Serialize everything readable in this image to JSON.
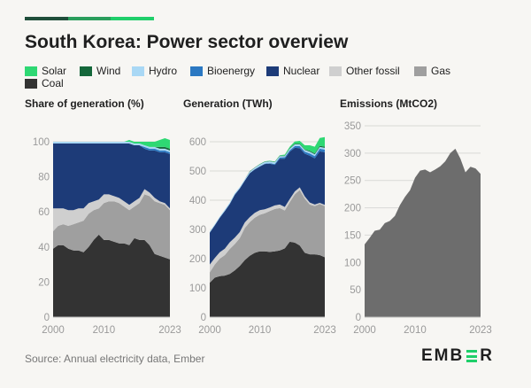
{
  "title": "South Korea: Power sector overview",
  "colors": {
    "accent_bar": [
      "#1f4e3a",
      "#2a9d5c",
      "#1fcf6a"
    ],
    "Solar": "#2ed873",
    "Wind": "#14673a",
    "Hydro": "#a9d8f5",
    "Bioenergy": "#2b78c2",
    "Nuclear": "#1d3b78",
    "Other fossil": "#cfcfcf",
    "Gas": "#9f9f9f",
    "Coal": "#333333",
    "Emissions": "#6d6d6d",
    "grid": "#d9d9d6",
    "axis_text": "#9a9a9a"
  },
  "legend": [
    {
      "label": "Solar",
      "icon": "color-swatch"
    },
    {
      "label": "Wind",
      "icon": "color-swatch"
    },
    {
      "label": "Hydro",
      "icon": "color-swatch"
    },
    {
      "label": "Bioenergy",
      "icon": "color-swatch"
    },
    {
      "label": "Nuclear",
      "icon": "color-swatch"
    },
    {
      "label": "Other fossil",
      "icon": "color-swatch"
    },
    {
      "label": "Gas",
      "icon": "color-swatch"
    },
    {
      "label": "Coal",
      "icon": "color-swatch"
    }
  ],
  "source": "Source: Annual electricity data, Ember",
  "logo": {
    "left": "EMB",
    "right": "R",
    "icon": "ember-e-mark"
  },
  "chart_data": [
    {
      "type": "area",
      "stacked": true,
      "title": "Share of generation (%)",
      "x": [
        2000,
        2001,
        2002,
        2003,
        2004,
        2005,
        2006,
        2007,
        2008,
        2009,
        2010,
        2011,
        2012,
        2013,
        2014,
        2015,
        2016,
        2017,
        2018,
        2019,
        2020,
        2021,
        2022,
        2023
      ],
      "xticks": [
        "2000",
        "2010",
        "2023"
      ],
      "ylim": [
        0,
        100
      ],
      "yticks": [
        0,
        20,
        40,
        60,
        80,
        100
      ],
      "series": [
        {
          "name": "Coal",
          "values": [
            39,
            41,
            41,
            39,
            38,
            38,
            37,
            40,
            44,
            47,
            44,
            44,
            43,
            42,
            42,
            41,
            45,
            44,
            44,
            41,
            36,
            35,
            34,
            33
          ]
        },
        {
          "name": "Gas",
          "values": [
            10,
            11,
            12,
            13,
            15,
            16,
            18,
            19,
            17,
            15,
            21,
            22,
            23,
            23,
            21,
            20,
            18,
            21,
            26,
            28,
            30,
            30,
            30,
            28
          ]
        },
        {
          "name": "Other fossil",
          "values": [
            13,
            10,
            9,
            9,
            8,
            8,
            7,
            6,
            5,
            5,
            5,
            4,
            3,
            3,
            3,
            3,
            3,
            3,
            3,
            2,
            2,
            1,
            1,
            1
          ]
        },
        {
          "name": "Nuclear",
          "values": [
            37,
            37,
            37,
            38,
            38,
            37,
            37,
            34,
            33,
            32,
            29,
            29,
            30,
            31,
            33,
            35,
            32,
            30,
            23,
            24,
            27,
            28,
            29,
            31
          ]
        },
        {
          "name": "Bioenergy",
          "values": [
            0,
            0,
            0,
            0,
            0,
            0,
            0,
            0,
            0,
            0,
            0,
            0,
            0,
            0,
            0,
            0,
            0,
            0,
            1,
            1,
            1,
            1,
            1,
            1
          ]
        },
        {
          "name": "Hydro",
          "values": [
            1,
            1,
            1,
            1,
            1,
            1,
            1,
            1,
            1,
            1,
            1,
            1,
            1,
            1,
            1,
            1,
            1,
            1,
            1,
            1,
            1,
            1,
            1,
            1
          ]
        },
        {
          "name": "Wind",
          "values": [
            0,
            0,
            0,
            0,
            0,
            0,
            0,
            0,
            0,
            0,
            0,
            0,
            0,
            0,
            0,
            0,
            0,
            0,
            0,
            0,
            0,
            1,
            1,
            1
          ]
        },
        {
          "name": "Solar",
          "values": [
            0,
            0,
            0,
            0,
            0,
            0,
            0,
            0,
            0,
            0,
            0,
            0,
            0,
            0,
            0,
            1,
            1,
            1,
            2,
            3,
            3,
            4,
            5,
            5
          ]
        }
      ]
    },
    {
      "type": "area",
      "stacked": true,
      "title": "Generation (TWh)",
      "x": [
        2000,
        2001,
        2002,
        2003,
        2004,
        2005,
        2006,
        2007,
        2008,
        2009,
        2010,
        2011,
        2012,
        2013,
        2014,
        2015,
        2016,
        2017,
        2018,
        2019,
        2020,
        2021,
        2022,
        2023
      ],
      "xticks": [
        "2000",
        "2010",
        "2023"
      ],
      "ylim": [
        0,
        600
      ],
      "yticks": [
        0,
        100,
        200,
        300,
        400,
        500,
        600
      ],
      "series": [
        {
          "name": "Coal",
          "values": [
            118,
            135,
            140,
            142,
            148,
            160,
            175,
            195,
            210,
            220,
            225,
            225,
            223,
            225,
            228,
            235,
            258,
            255,
            245,
            220,
            215,
            215,
            212,
            205
          ]
        },
        {
          "name": "Gas",
          "values": [
            35,
            45,
            60,
            70,
            85,
            90,
            95,
            110,
            115,
            120,
            125,
            130,
            140,
            145,
            145,
            130,
            135,
            165,
            190,
            185,
            170,
            165,
            175,
            175
          ]
        },
        {
          "name": "Other fossil",
          "values": [
            27,
            22,
            22,
            22,
            23,
            22,
            21,
            19,
            17,
            17,
            16,
            14,
            12,
            12,
            12,
            12,
            11,
            10,
            9,
            8,
            7,
            5,
            4,
            4
          ]
        },
        {
          "name": "Nuclear",
          "values": [
            109,
            112,
            118,
            129,
            131,
            147,
            149,
            143,
            150,
            148,
            149,
            155,
            150,
            139,
            157,
            165,
            162,
            149,
            134,
            146,
            160,
            158,
            176,
            180
          ]
        },
        {
          "name": "Bioenergy",
          "values": [
            0,
            0,
            0,
            0,
            0,
            0,
            0,
            0,
            1,
            1,
            1,
            1,
            2,
            3,
            4,
            5,
            5,
            6,
            7,
            7,
            8,
            8,
            9,
            9
          ]
        },
        {
          "name": "Hydro",
          "values": [
            4,
            4,
            4,
            5,
            5,
            5,
            5,
            5,
            5,
            5,
            6,
            6,
            6,
            6,
            5,
            4,
            5,
            6,
            6,
            6,
            6,
            6,
            6,
            6
          ]
        },
        {
          "name": "Wind",
          "values": [
            0,
            0,
            0,
            0,
            0,
            0,
            0,
            0,
            1,
            1,
            1,
            1,
            1,
            1,
            1,
            1,
            2,
            2,
            2,
            2,
            3,
            3,
            4,
            4
          ]
        },
        {
          "name": "Solar",
          "values": [
            0,
            0,
            0,
            0,
            0,
            0,
            0,
            0,
            0,
            0,
            1,
            1,
            1,
            1,
            2,
            4,
            5,
            8,
            10,
            14,
            19,
            23,
            27,
            33
          ]
        }
      ]
    },
    {
      "type": "area",
      "title": "Emissions (MtCO2)",
      "x": [
        2000,
        2001,
        2002,
        2003,
        2004,
        2005,
        2006,
        2007,
        2008,
        2009,
        2010,
        2011,
        2012,
        2013,
        2014,
        2015,
        2016,
        2017,
        2018,
        2019,
        2020,
        2021,
        2022,
        2023
      ],
      "xticks": [
        "2000",
        "2010",
        "2023"
      ],
      "ylim": [
        0,
        350
      ],
      "yticks": [
        0,
        50,
        100,
        150,
        200,
        250,
        300,
        350
      ],
      "series": [
        {
          "name": "Emissions",
          "values": [
            133,
            145,
            158,
            160,
            172,
            176,
            185,
            205,
            220,
            232,
            255,
            268,
            270,
            265,
            270,
            276,
            285,
            300,
            308,
            290,
            265,
            275,
            272,
            262
          ]
        }
      ]
    }
  ]
}
